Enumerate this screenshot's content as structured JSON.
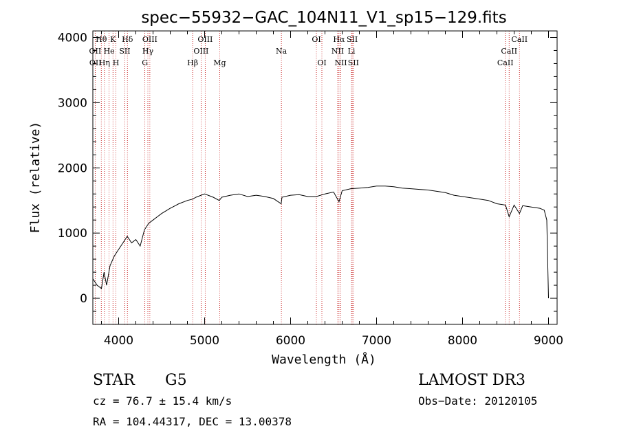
{
  "chart_data": {
    "type": "line",
    "title": "spec−55932−GAC_104N11_V1_sp15−129.fits",
    "xlabel": "Wavelength (Å)",
    "ylabel": "Flux (relative)",
    "xlim": [
      3700,
      9100
    ],
    "ylim": [
      -400,
      4100
    ],
    "x_ticks": [
      4000,
      5000,
      6000,
      7000,
      8000,
      9000
    ],
    "y_ticks": [
      0,
      1000,
      2000,
      3000,
      4000
    ],
    "series": [
      {
        "name": "spectrum",
        "x": [
          3700,
          3750,
          3800,
          3830,
          3860,
          3900,
          3950,
          4000,
          4050,
          4100,
          4150,
          4200,
          4250,
          4300,
          4350,
          4400,
          4450,
          4500,
          4600,
          4700,
          4800,
          4860,
          4900,
          5000,
          5100,
          5170,
          5200,
          5300,
          5400,
          5500,
          5600,
          5700,
          5800,
          5890,
          5900,
          6000,
          6100,
          6200,
          6300,
          6400,
          6500,
          6563,
          6600,
          6700,
          6800,
          6900,
          7000,
          7100,
          7200,
          7300,
          7400,
          7500,
          7600,
          7700,
          7800,
          7900,
          8000,
          8100,
          8200,
          8300,
          8400,
          8500,
          8542,
          8600,
          8662,
          8700,
          8800,
          8900,
          8950,
          8980,
          9000
        ],
        "y": [
          300,
          200,
          150,
          400,
          200,
          500,
          650,
          750,
          850,
          950,
          850,
          900,
          800,
          1050,
          1150,
          1200,
          1250,
          1300,
          1380,
          1450,
          1500,
          1520,
          1550,
          1600,
          1550,
          1500,
          1550,
          1580,
          1600,
          1560,
          1580,
          1560,
          1530,
          1450,
          1550,
          1580,
          1590,
          1560,
          1560,
          1600,
          1630,
          1480,
          1650,
          1680,
          1690,
          1700,
          1720,
          1720,
          1710,
          1690,
          1680,
          1670,
          1660,
          1640,
          1620,
          1580,
          1560,
          1540,
          1520,
          1500,
          1450,
          1430,
          1250,
          1430,
          1300,
          1420,
          1400,
          1380,
          1350,
          1200,
          0
        ]
      }
    ],
    "line_labels": [
      {
        "text": "Hθ",
        "wavelength": 3798,
        "row": 1
      },
      {
        "text": "OII",
        "wavelength": 3727,
        "row": 2
      },
      {
        "text": "OII",
        "wavelength": 3730,
        "row": 3
      },
      {
        "text": "Hη",
        "wavelength": 3835,
        "row": 3
      },
      {
        "text": "He",
        "wavelength": 3889,
        "row": 2
      },
      {
        "text": "K",
        "wavelength": 3934,
        "row": 1
      },
      {
        "text": "H",
        "wavelength": 3968,
        "row": 3
      },
      {
        "text": "SII",
        "wavelength": 4072,
        "row": 2
      },
      {
        "text": "Hδ",
        "wavelength": 4102,
        "row": 1
      },
      {
        "text": "OIII",
        "wavelength": 4363,
        "row": 1
      },
      {
        "text": "Hγ",
        "wavelength": 4340,
        "row": 2
      },
      {
        "text": "G",
        "wavelength": 4305,
        "row": 3
      },
      {
        "text": "Hβ",
        "wavelength": 4861,
        "row": 3
      },
      {
        "text": "OIII",
        "wavelength": 4959,
        "row": 2
      },
      {
        "text": "OIII",
        "wavelength": 5007,
        "row": 1
      },
      {
        "text": "Mg",
        "wavelength": 5175,
        "row": 3
      },
      {
        "text": "Na",
        "wavelength": 5893,
        "row": 2
      },
      {
        "text": "OI",
        "wavelength": 6300,
        "row": 1
      },
      {
        "text": "OI",
        "wavelength": 6364,
        "row": 3
      },
      {
        "text": "Hα",
        "wavelength": 6563,
        "row": 1
      },
      {
        "text": "NII",
        "wavelength": 6548,
        "row": 2
      },
      {
        "text": "NII",
        "wavelength": 6584,
        "row": 3
      },
      {
        "text": "SII",
        "wavelength": 6717,
        "row": 1
      },
      {
        "text": "Li",
        "wavelength": 6708,
        "row": 2
      },
      {
        "text": "SII",
        "wavelength": 6731,
        "row": 3
      },
      {
        "text": "CaII",
        "wavelength": 8662,
        "row": 1
      },
      {
        "text": "CaII",
        "wavelength": 8542,
        "row": 2
      },
      {
        "text": "CaII",
        "wavelength": 8498,
        "row": 3
      }
    ],
    "line_markers": [
      3727,
      3798,
      3835,
      3889,
      3934,
      3968,
      4072,
      4102,
      4305,
      4340,
      4363,
      4861,
      4959,
      5007,
      5175,
      5893,
      6300,
      6364,
      6548,
      6563,
      6584,
      6708,
      6717,
      6731,
      8498,
      8542,
      8662
    ]
  },
  "info": {
    "class_label": "STAR",
    "subclass_label": "G5",
    "survey_label": "LAMOST DR3",
    "cz_text": "cz = 76.7 ± 15.4 km/s",
    "obs_date_text": "Obs−Date: 20120105",
    "radec_text": "RA = 104.44317, DEC =  13.00378"
  },
  "colors": {
    "axis": "#000000",
    "spectrum": "#000000",
    "marker_line": "#c00000"
  }
}
